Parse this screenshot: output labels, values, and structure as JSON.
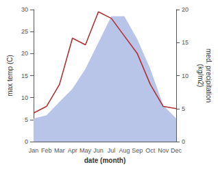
{
  "chart_data": {
    "type": "line",
    "xlabel": "date (month)",
    "ylabel": "max temp (C)",
    "y2label": "med. precipitation\n(kg/m2)",
    "categories": [
      "Jan",
      "Feb",
      "Mar",
      "Apr",
      "May",
      "Jun",
      "Jul",
      "Aug",
      "Sep",
      "Oct",
      "Nov",
      "Dec"
    ],
    "series": [
      {
        "type": "area",
        "axis": "y2",
        "color": "#b8c4e8",
        "values": [
          3.5,
          4.0,
          6.0,
          8.0,
          11.0,
          15.0,
          19.0,
          19.0,
          15.5,
          11.0,
          5.5,
          3.5
        ]
      },
      {
        "type": "line",
        "color": "#b03030",
        "values": [
          6.5,
          8.0,
          13.0,
          23.5,
          22.0,
          29.5,
          28.0,
          24.0,
          20.0,
          13.0,
          8.0,
          7.5
        ]
      }
    ],
    "ylim": [
      0,
      30
    ],
    "yticks": [
      0,
      5,
      10,
      15,
      20,
      25,
      30
    ],
    "y2lim": [
      0,
      20
    ],
    "y2ticks": [
      0,
      5,
      10,
      15,
      20
    ],
    "grid": false
  }
}
